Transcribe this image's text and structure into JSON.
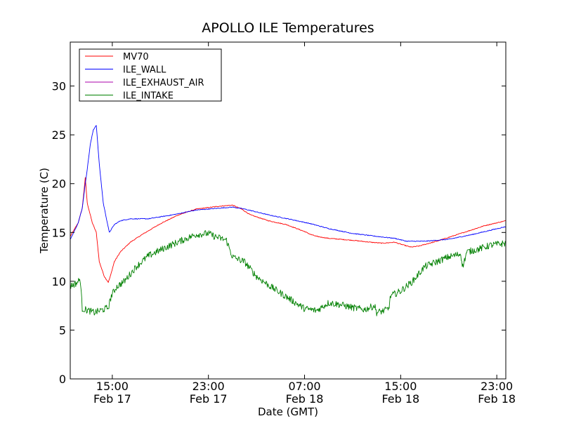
{
  "chart_data": {
    "type": "line",
    "title": "APOLLO ILE Temperatures",
    "xlabel": "Date (GMT)",
    "ylabel": "Temperature (C)",
    "xlim": [
      "2012-02-17 11:30",
      "2012-02-18 23:45"
    ],
    "ylim": [
      0,
      34.5
    ],
    "yticks": [
      0,
      5,
      10,
      15,
      20,
      25,
      30
    ],
    "xticks": [
      {
        "x": "2012-02-17 15:00",
        "time": "15:00",
        "date": "Feb 17"
      },
      {
        "x": "2012-02-17 23:00",
        "time": "23:00",
        "date": "Feb 17"
      },
      {
        "x": "2012-02-18 07:00",
        "time": "07:00",
        "date": "Feb 18"
      },
      {
        "x": "2012-02-18 15:00",
        "time": "15:00",
        "date": "Feb 18"
      },
      {
        "x": "2012-02-18 23:00",
        "time": "23:00",
        "date": "Feb 18"
      }
    ],
    "grid": false,
    "legend_position": "top-left",
    "series": [
      {
        "name": "MV70",
        "color": "#ff0000",
        "points": [
          [
            "2012-02-17 11:30",
            14.6
          ],
          [
            "2012-02-17 12:10",
            16.0
          ],
          [
            "2012-02-17 12:30",
            17.5
          ],
          [
            "2012-02-17 12:45",
            20.6
          ],
          [
            "2012-02-17 12:55",
            18.0
          ],
          [
            "2012-02-17 13:20",
            16.0
          ],
          [
            "2012-02-17 13:40",
            15.0
          ],
          [
            "2012-02-17 13:55",
            12.0
          ],
          [
            "2012-02-17 14:20",
            10.5
          ],
          [
            "2012-02-17 14:40",
            9.9
          ],
          [
            "2012-02-17 14:50",
            10.5
          ],
          [
            "2012-02-17 15:10",
            12.0
          ],
          [
            "2012-02-17 15:40",
            13.0
          ],
          [
            "2012-02-17 16:30",
            14.0
          ],
          [
            "2012-02-17 17:30",
            14.8
          ],
          [
            "2012-02-17 19:00",
            15.9
          ],
          [
            "2012-02-17 20:30",
            16.8
          ],
          [
            "2012-02-17 22:00",
            17.4
          ],
          [
            "2012-02-18 00:00",
            17.7
          ],
          [
            "2012-02-18 01:00",
            17.8
          ],
          [
            "2012-02-18 01:45",
            17.4
          ],
          [
            "2012-02-18 02:30",
            16.8
          ],
          [
            "2012-02-18 04:00",
            16.2
          ],
          [
            "2012-02-18 05:30",
            15.8
          ],
          [
            "2012-02-18 07:00",
            15.1
          ],
          [
            "2012-02-18 07:30",
            14.8
          ],
          [
            "2012-02-18 08:00",
            14.6
          ],
          [
            "2012-02-18 09:00",
            14.4
          ],
          [
            "2012-02-18 11:00",
            14.2
          ],
          [
            "2012-02-18 12:30",
            14.0
          ],
          [
            "2012-02-18 13:30",
            13.9
          ],
          [
            "2012-02-18 14:30",
            14.0
          ],
          [
            "2012-02-18 15:00",
            13.8
          ],
          [
            "2012-02-18 15:50",
            13.5
          ],
          [
            "2012-02-18 16:30",
            13.6
          ],
          [
            "2012-02-18 18:00",
            14.1
          ],
          [
            "2012-02-18 20:00",
            14.9
          ],
          [
            "2012-02-18 22:00",
            15.7
          ],
          [
            "2012-02-18 23:45",
            16.2
          ]
        ]
      },
      {
        "name": "ILE_WALL",
        "color": "#0000ff",
        "points": [
          [
            "2012-02-17 11:30",
            14.3
          ],
          [
            "2012-02-17 12:10",
            16.0
          ],
          [
            "2012-02-17 12:30",
            17.5
          ],
          [
            "2012-02-17 12:45",
            20.0
          ],
          [
            "2012-02-17 12:55",
            21.5
          ],
          [
            "2012-02-17 13:10",
            24.0
          ],
          [
            "2012-02-17 13:25",
            25.5
          ],
          [
            "2012-02-17 13:40",
            26.0
          ],
          [
            "2012-02-17 13:55",
            22.0
          ],
          [
            "2012-02-17 14:15",
            18.0
          ],
          [
            "2012-02-17 14:35",
            16.0
          ],
          [
            "2012-02-17 14:45",
            15.0
          ],
          [
            "2012-02-17 15:10",
            15.8
          ],
          [
            "2012-02-17 15:40",
            16.2
          ],
          [
            "2012-02-17 16:30",
            16.4
          ],
          [
            "2012-02-17 18:00",
            16.4
          ],
          [
            "2012-02-17 20:00",
            16.8
          ],
          [
            "2012-02-17 22:00",
            17.3
          ],
          [
            "2012-02-18 00:00",
            17.5
          ],
          [
            "2012-02-18 01:00",
            17.6
          ],
          [
            "2012-02-18 02:00",
            17.4
          ],
          [
            "2012-02-18 04:00",
            16.8
          ],
          [
            "2012-02-18 06:00",
            16.3
          ],
          [
            "2012-02-18 07:30",
            15.9
          ],
          [
            "2012-02-18 09:00",
            15.4
          ],
          [
            "2012-02-18 11:00",
            14.9
          ],
          [
            "2012-02-18 13:00",
            14.6
          ],
          [
            "2012-02-18 14:30",
            14.4
          ],
          [
            "2012-02-18 15:30",
            14.1
          ],
          [
            "2012-02-18 17:00",
            14.1
          ],
          [
            "2012-02-18 19:00",
            14.3
          ],
          [
            "2012-02-18 21:00",
            14.8
          ],
          [
            "2012-02-18 23:45",
            15.6
          ]
        ]
      },
      {
        "name": "ILE_EXHAUST_AIR",
        "color": "#aa00aa",
        "points": []
      },
      {
        "name": "ILE_INTAKE",
        "color": "#008000",
        "points": [
          [
            "2012-02-17 11:30",
            9.5
          ],
          [
            "2012-02-17 12:00",
            9.8
          ],
          [
            "2012-02-17 12:20",
            10.2
          ],
          [
            "2012-02-17 12:30",
            7.2
          ],
          [
            "2012-02-17 13:00",
            7.0
          ],
          [
            "2012-02-17 13:30",
            6.8
          ],
          [
            "2012-02-17 14:00",
            7.0
          ],
          [
            "2012-02-17 14:40",
            7.3
          ],
          [
            "2012-02-17 14:55",
            8.5
          ],
          [
            "2012-02-17 15:20",
            9.4
          ],
          [
            "2012-02-17 16:00",
            10.0
          ],
          [
            "2012-02-17 17:00",
            11.5
          ],
          [
            "2012-02-17 18:00",
            12.6
          ],
          [
            "2012-02-17 19:30",
            13.5
          ],
          [
            "2012-02-17 21:00",
            14.3
          ],
          [
            "2012-02-17 22:00",
            14.8
          ],
          [
            "2012-02-17 23:00",
            14.9
          ],
          [
            "2012-02-17 23:30",
            14.6
          ],
          [
            "2012-02-18 00:30",
            14.2
          ],
          [
            "2012-02-18 01:00",
            12.5
          ],
          [
            "2012-02-18 02:00",
            12.0
          ],
          [
            "2012-02-18 03:00",
            10.5
          ],
          [
            "2012-02-18 04:00",
            9.6
          ],
          [
            "2012-02-18 05:00",
            8.8
          ],
          [
            "2012-02-18 06:00",
            8.0
          ],
          [
            "2012-02-18 07:00",
            7.2
          ],
          [
            "2012-02-18 08:00",
            7.0
          ],
          [
            "2012-02-18 09:00",
            7.8
          ],
          [
            "2012-02-18 10:00",
            7.6
          ],
          [
            "2012-02-18 11:00",
            7.3
          ],
          [
            "2012-02-18 12:00",
            7.1
          ],
          [
            "2012-02-18 12:50",
            7.5
          ],
          [
            "2012-02-18 13:00",
            6.8
          ],
          [
            "2012-02-18 13:40",
            7.0
          ],
          [
            "2012-02-18 14:00",
            7.2
          ],
          [
            "2012-02-18 14:10",
            8.5
          ],
          [
            "2012-02-18 15:00",
            9.0
          ],
          [
            "2012-02-18 16:00",
            10.0
          ],
          [
            "2012-02-18 17:00",
            11.5
          ],
          [
            "2012-02-18 18:00",
            12.0
          ],
          [
            "2012-02-18 19:00",
            12.5
          ],
          [
            "2012-02-18 20:00",
            12.8
          ],
          [
            "2012-02-18 20:10",
            11.5
          ],
          [
            "2012-02-18 20:30",
            13.0
          ],
          [
            "2012-02-18 21:30",
            13.3
          ],
          [
            "2012-02-18 22:30",
            13.7
          ],
          [
            "2012-02-18 23:45",
            13.9
          ]
        ]
      }
    ]
  }
}
